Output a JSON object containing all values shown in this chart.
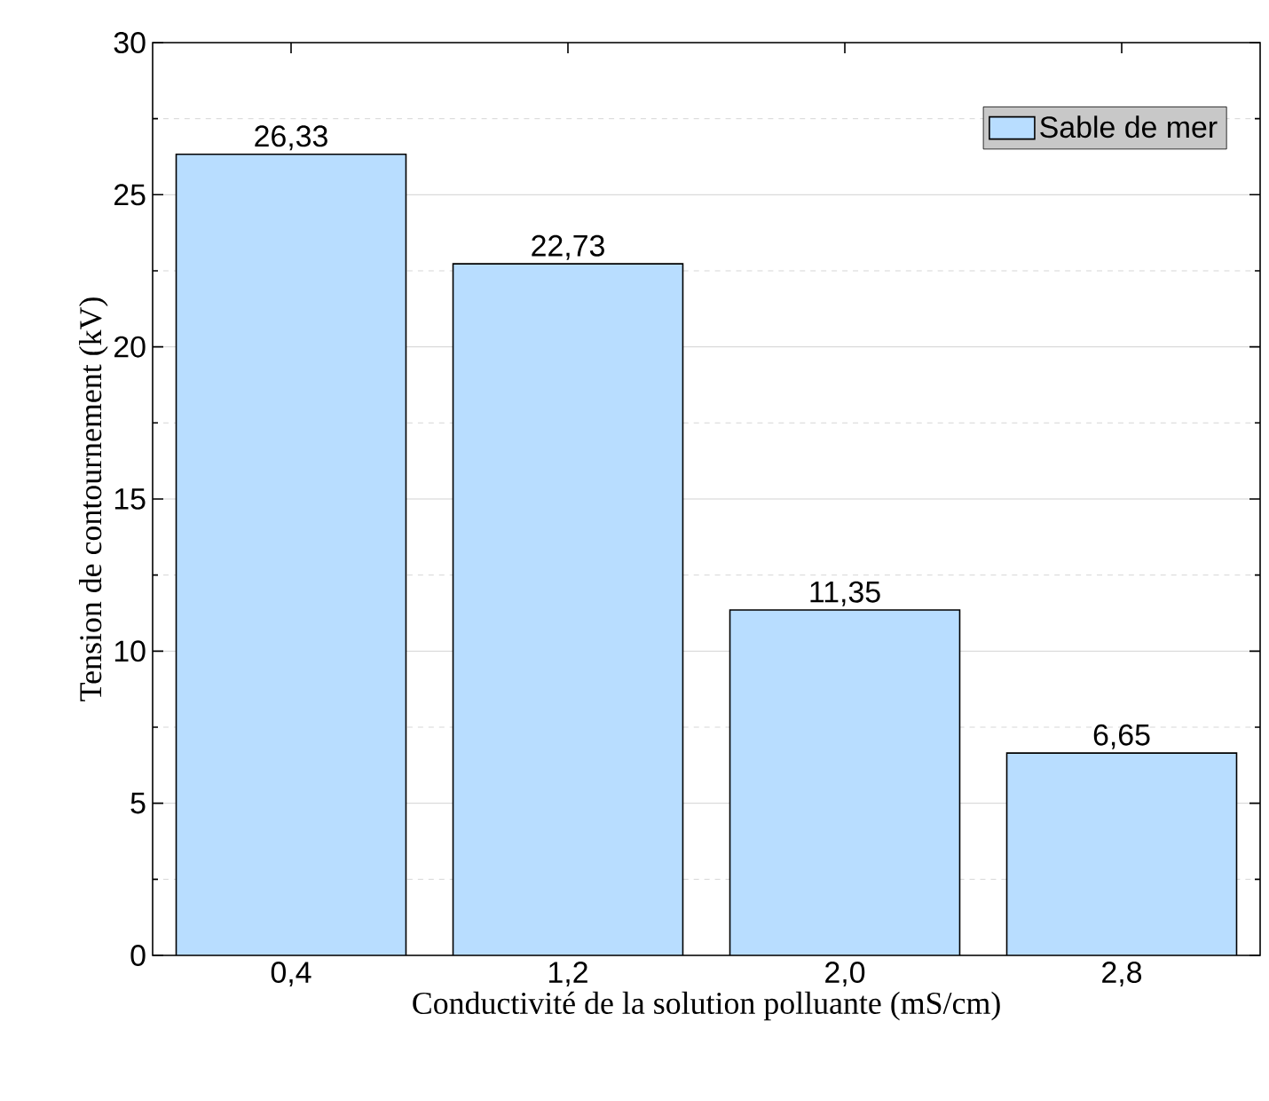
{
  "chart_data": {
    "type": "bar",
    "xlabel": "Conductivité de la solution polluante (mS/cm)",
    "ylabel": "Tension de contournement (kV)",
    "categories": [
      "0,4",
      "1,2",
      "2,0",
      "2,8"
    ],
    "series": [
      {
        "name": "Sable de mer",
        "color": "#b8ddff",
        "values": [
          26.33,
          22.73,
          11.35,
          6.65
        ],
        "value_labels": [
          "26,33",
          "22,73",
          "11,35",
          "6,65"
        ]
      }
    ],
    "ylim": [
      0,
      30
    ],
    "yticks": [
      0,
      5,
      10,
      15,
      20,
      25,
      30
    ],
    "grid": "y",
    "legend": "top right"
  }
}
